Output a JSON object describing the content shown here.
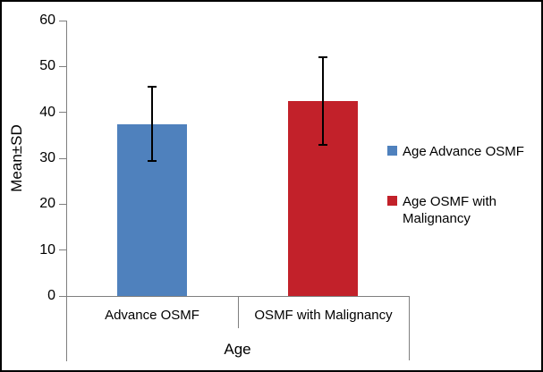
{
  "chart_data": {
    "type": "bar",
    "title": "",
    "xlabel": "Age",
    "ylabel": "Mean±SD",
    "ylim": [
      0,
      60
    ],
    "ytick_step": 10,
    "grid": false,
    "legend_position": "right",
    "error_bars": true,
    "categories": [
      "Advance OSMF",
      "OSMF with Malignancy"
    ],
    "series": [
      {
        "name": "Age Advance OSMF",
        "color": "#4F81BD",
        "category": "Advance OSMF",
        "mean": 37.5,
        "sd": 8.0
      },
      {
        "name": "Age OSMF with Malignancy",
        "color": "#C2212A",
        "category": "OSMF with Malignancy",
        "mean": 42.5,
        "sd": 9.5
      }
    ],
    "colors": {
      "axis": "#7f7f7f",
      "error_bar": "#000000",
      "background": "#ffffff",
      "border": "#000000"
    }
  }
}
